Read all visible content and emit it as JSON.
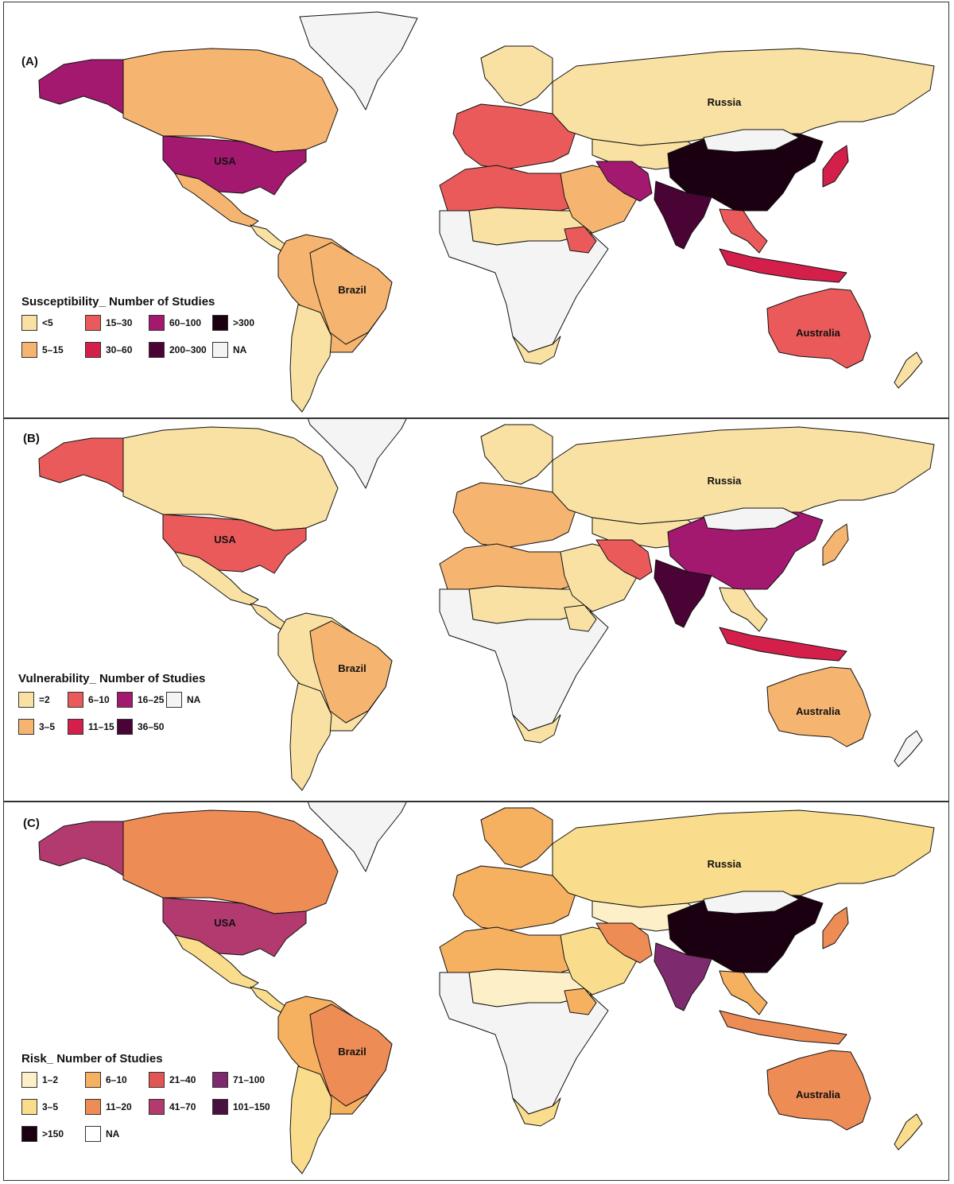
{
  "panels": [
    {
      "id": "A",
      "label": "(A)",
      "legend_title": "Susceptibility_ Number of Studies",
      "legend": [
        {
          "label": "<5",
          "color": "#f9e1a3"
        },
        {
          "label": "15–30",
          "color": "#ea5a5a"
        },
        {
          "label": "60–100",
          "color": "#a3196f"
        },
        {
          "label": ">300",
          "color": "#1a0010"
        },
        {
          "label": "5–15",
          "color": "#f5b570"
        },
        {
          "label": "30–60",
          "color": "#d41f4b"
        },
        {
          "label": "200–300",
          "color": "#4a0335"
        },
        {
          "label": "NA",
          "color": "#f4f4f4"
        }
      ],
      "regions": {
        "alaska": "#a3196f",
        "canada": "#f5b570",
        "usa": "#a3196f",
        "mexico": "#f5b570",
        "central": "#f9e1a3",
        "greenland": "#f4f4f4",
        "brazil": "#f5b570",
        "south_am": "#f5b570",
        "argentina": "#f9e1a3",
        "russia": "#f9e1a3",
        "europe": "#ea5a5a",
        "scandinavia": "#f9e1a3",
        "n_africa": "#ea5a5a",
        "sahara": "#f9e1a3",
        "africa": "#f4f4f4",
        "s_africa": "#f9e1a3",
        "ethiopia": "#ea5a5a",
        "middle_east": "#f5b570",
        "iran": "#a3196f",
        "central_asia": "#f9e1a3",
        "china": "#1a0010",
        "mongolia": "#f4f4f4",
        "india": "#4a0335",
        "se_asia": "#ea5a5a",
        "indonesia": "#d41f4b",
        "japan": "#d41f4b",
        "australia": "#ea5a5a",
        "nz": "#f9e1a3"
      },
      "countries": [
        "USA",
        "Brazil",
        "Russia",
        "Australia"
      ]
    },
    {
      "id": "B",
      "label": "(B)",
      "legend_title": "Vulnerability_ Number of Studies",
      "legend": [
        {
          "label": "=2",
          "color": "#f9e1a3"
        },
        {
          "label": "6–10",
          "color": "#ea5a5a"
        },
        {
          "label": "16–25",
          "color": "#a3196f"
        },
        {
          "label": "NA",
          "color": "#f4f4f4"
        },
        {
          "label": "3–5",
          "color": "#f5b570"
        },
        {
          "label": "11–15",
          "color": "#d41f4b"
        },
        {
          "label": "36–50",
          "color": "#4a0335"
        }
      ],
      "regions": {
        "alaska": "#ea5a5a",
        "canada": "#f9e1a3",
        "usa": "#ea5a5a",
        "mexico": "#f9e1a3",
        "central": "#f9e1a3",
        "greenland": "#f4f4f4",
        "brazil": "#f5b570",
        "south_am": "#f9e1a3",
        "argentina": "#f9e1a3",
        "russia": "#f9e1a3",
        "europe": "#f5b570",
        "scandinavia": "#f9e1a3",
        "n_africa": "#f5b570",
        "sahara": "#f9e1a3",
        "africa": "#f4f4f4",
        "s_africa": "#f9e1a3",
        "ethiopia": "#f9e1a3",
        "middle_east": "#f9e1a3",
        "iran": "#ea5a5a",
        "central_asia": "#f9e1a3",
        "china": "#a3196f",
        "mongolia": "#f4f4f4",
        "india": "#4a0335",
        "se_asia": "#f9e1a3",
        "indonesia": "#d41f4b",
        "japan": "#f5b570",
        "australia": "#f5b570",
        "nz": "#f4f4f4"
      },
      "countries": [
        "USA",
        "Brazil",
        "Russia",
        "Australia"
      ]
    },
    {
      "id": "C",
      "label": "(C)",
      "legend_title": "Risk_ Number of Studies",
      "legend": [
        {
          "label": "1–2",
          "color": "#fdf0c8"
        },
        {
          "label": "6–10",
          "color": "#f5b060"
        },
        {
          "label": "21–40",
          "color": "#e25555"
        },
        {
          "label": "71–100",
          "color": "#7e2a6e"
        },
        {
          "label": "3–5",
          "color": "#f9dc8c"
        },
        {
          "label": "11–20",
          "color": "#ee8c55"
        },
        {
          "label": "41–70",
          "color": "#b23a6e"
        },
        {
          "label": "101–150",
          "color": "#4a1040"
        },
        {
          "label": ">150",
          "color": "#1a0010"
        },
        {
          "label": "NA",
          "color": "#ffffff"
        }
      ],
      "regions": {
        "alaska": "#b23a6e",
        "canada": "#ee8c55",
        "usa": "#b23a6e",
        "mexico": "#f9dc8c",
        "central": "#f9dc8c",
        "greenland": "#f4f4f4",
        "brazil": "#ee8c55",
        "south_am": "#f5b060",
        "argentina": "#f9dc8c",
        "russia": "#f9dc8c",
        "europe": "#f5b060",
        "scandinavia": "#f5b060",
        "n_africa": "#f5b060",
        "sahara": "#fdf0c8",
        "africa": "#f4f4f4",
        "s_africa": "#f9dc8c",
        "ethiopia": "#f5b060",
        "middle_east": "#f9dc8c",
        "iran": "#ee8c55",
        "central_asia": "#fdf0c8",
        "china": "#1a0010",
        "mongolia": "#f4f4f4",
        "india": "#7e2a6e",
        "se_asia": "#f5b060",
        "indonesia": "#ee8c55",
        "japan": "#ee8c55",
        "australia": "#ee8c55",
        "nz": "#f9dc8c"
      },
      "countries": [
        "USA",
        "Brazil",
        "Russia",
        "Australia"
      ]
    }
  ]
}
